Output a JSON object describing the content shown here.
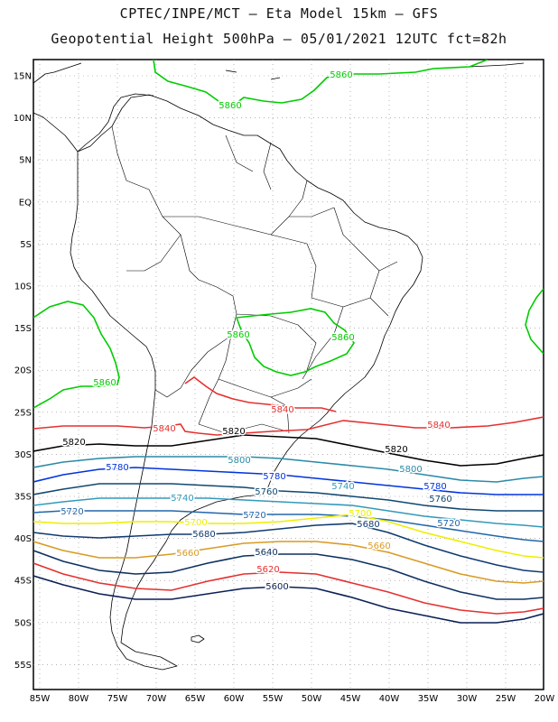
{
  "title_line1": "CPTEC/INPE/MCT –  Eta Model 15km – GFS",
  "title_line2": "Geopotential Height 500hPa – 05/01/2021 12UTC fct=82h",
  "lat_labels": [
    "15N",
    "10N",
    "5N",
    "EQ",
    "5S",
    "10S",
    "15S",
    "20S",
    "25S",
    "30S",
    "35S",
    "40S",
    "45S",
    "50S",
    "55S"
  ],
  "lon_labels": [
    "85W",
    "80W",
    "75W",
    "70W",
    "65W",
    "60W",
    "55W",
    "50W",
    "45W",
    "40W",
    "35W",
    "30W",
    "25W",
    "20W"
  ],
  "colors": {
    "5860": "#00cc00",
    "5840": "#e53030",
    "5820": "#000000",
    "5800": "#2a8aa8",
    "5780": "#0033dd",
    "5760": "#104870",
    "5740": "#3399bb",
    "5720": "#2266aa",
    "5700": "#eeee00",
    "5680": "#103a70",
    "5660": "#d99a22",
    "5640": "#0e3060",
    "5620": "#e53030",
    "5600": "#0a1f55",
    "coast": "#000000"
  },
  "contour_labels": [
    {
      "text": "5860",
      "level": "5860"
    },
    {
      "text": "5860",
      "level": "5860"
    },
    {
      "text": "5860",
      "level": "5860"
    },
    {
      "text": "5860",
      "level": "5860"
    },
    {
      "text": "5860",
      "level": "5860"
    },
    {
      "text": "5840",
      "level": "5840"
    },
    {
      "text": "5840",
      "level": "5840"
    },
    {
      "text": "5840",
      "level": "5840"
    },
    {
      "text": "5820",
      "level": "5820"
    },
    {
      "text": "5820",
      "level": "5820"
    },
    {
      "text": "5820",
      "level": "5820"
    },
    {
      "text": "5800",
      "level": "5800"
    },
    {
      "text": "5800",
      "level": "5800"
    },
    {
      "text": "5780",
      "level": "5780"
    },
    {
      "text": "5780",
      "level": "5780"
    },
    {
      "text": "5780",
      "level": "5780"
    },
    {
      "text": "5760",
      "level": "5760"
    },
    {
      "text": "5760",
      "level": "5760"
    },
    {
      "text": "5740",
      "level": "5740"
    },
    {
      "text": "5740",
      "level": "5740"
    },
    {
      "text": "5720",
      "level": "5720"
    },
    {
      "text": "5720",
      "level": "5720"
    },
    {
      "text": "5720",
      "level": "5720"
    },
    {
      "text": "5700",
      "level": "5700"
    },
    {
      "text": "5700",
      "level": "5700"
    },
    {
      "text": "5680",
      "level": "5680"
    },
    {
      "text": "5680",
      "level": "5680"
    },
    {
      "text": "5660",
      "level": "5660"
    },
    {
      "text": "5660",
      "level": "5660"
    },
    {
      "text": "5640",
      "level": "5640"
    },
    {
      "text": "5620",
      "level": "5620"
    },
    {
      "text": "5600",
      "level": "5600"
    }
  ]
}
